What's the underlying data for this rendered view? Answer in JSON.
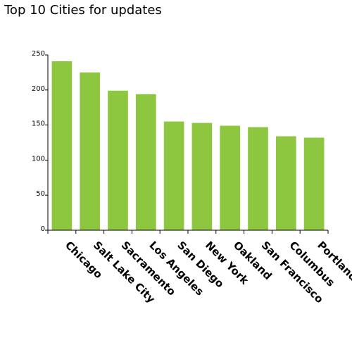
{
  "chart_data": {
    "type": "bar",
    "title": "Top 10 Cities for updates",
    "xlabel": "",
    "ylabel": "",
    "categories": [
      "Chicago",
      "Salt Lake City",
      "Sacramento",
      "Los Angeles",
      "San Diego",
      "New York",
      "Oakland",
      "San Francisco",
      "Columbus",
      "Portland"
    ],
    "values": [
      241,
      225,
      199,
      194,
      155,
      153,
      149,
      147,
      134,
      132
    ],
    "ylim": [
      0,
      250
    ],
    "yticks": [
      0,
      50,
      100,
      150,
      200,
      250
    ],
    "ytick_labels": [
      "0",
      "50",
      "100",
      "150",
      "200",
      "250"
    ],
    "bar_color": "#8dc63f",
    "grid": false,
    "legend": "none"
  }
}
